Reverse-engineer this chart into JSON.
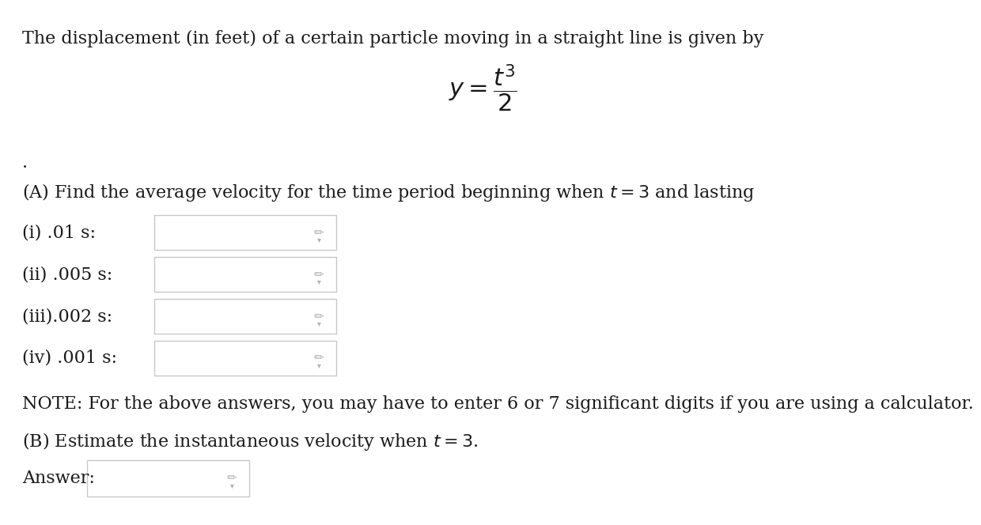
{
  "bg_color": "#ffffff",
  "text_color": "#1a1a1a",
  "title_line": "The displacement (in feet) of a certain particle moving in a straight line is given by",
  "dot_line": ".",
  "part_A": "(A) Find the average velocity for the time period beginning when $t = 3$ and lasting",
  "labels": [
    "(i) .01 s:",
    "(ii) .005 s:",
    "(iii).002 s:",
    "(iv) .001 s:"
  ],
  "note_line": "NOTE: For the above answers, you may have to enter 6 or 7 significant digits if you are using a calculator.",
  "part_B": "(B) Estimate the instantaneous velocity when $t = 3$.",
  "answer_label": "Answer:",
  "font_size_main": 16,
  "input_box_edge": "#c8c8c8",
  "pencil_color": "#b0b0b0"
}
